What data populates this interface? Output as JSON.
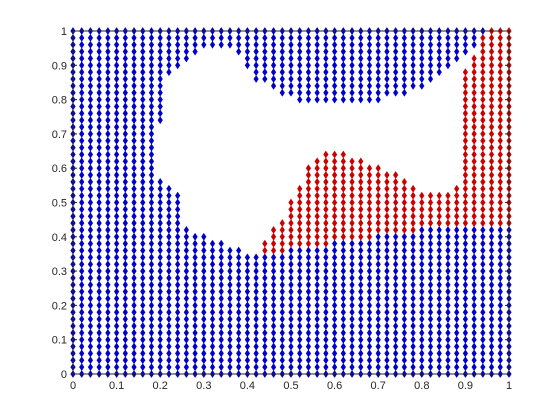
{
  "chart_data": {
    "type": "scatter",
    "title": "",
    "xlabel": "",
    "ylabel": "",
    "xlim": [
      0,
      1
    ],
    "ylim": [
      0,
      1
    ],
    "xticks": [
      0,
      0.1,
      0.2,
      0.3,
      0.4,
      0.5,
      0.6,
      0.7,
      0.8,
      0.9,
      1
    ],
    "yticks": [
      0,
      0.1,
      0.2,
      0.3,
      0.4,
      0.5,
      0.6,
      0.7,
      0.8,
      0.9,
      1
    ],
    "xtick_labels": [
      "0",
      "0.1",
      "0.2",
      "0.3",
      "0.4",
      "0.5",
      "0.6",
      "0.7",
      "0.8",
      "0.9",
      "1"
    ],
    "ytick_labels": [
      "0",
      "0.1",
      "0.2",
      "0.3",
      "0.4",
      "0.5",
      "0.6",
      "0.7",
      "0.8",
      "0.9",
      "1"
    ],
    "grid": false,
    "legend": "none",
    "marker": "diamond",
    "grid_points": {
      "x_start": 0,
      "x_end": 1,
      "x_step": 0.02,
      "y_start": 0,
      "y_end": 1,
      "y_step": 0.02
    },
    "void_region_polygon": [
      [
        0.245,
        0.44
      ],
      [
        0.25,
        0.52
      ],
      [
        0.22,
        0.55
      ],
      [
        0.2,
        0.58
      ],
      [
        0.2,
        0.72
      ],
      [
        0.22,
        0.86
      ],
      [
        0.29,
        0.95
      ],
      [
        0.32,
        0.96
      ],
      [
        0.35,
        0.95
      ],
      [
        0.38,
        0.93
      ],
      [
        0.42,
        0.86
      ],
      [
        0.48,
        0.81
      ],
      [
        0.54,
        0.79
      ],
      [
        0.6,
        0.79
      ],
      [
        0.66,
        0.79
      ],
      [
        0.72,
        0.8
      ],
      [
        0.78,
        0.82
      ],
      [
        0.84,
        0.86
      ],
      [
        0.89,
        0.92
      ],
      [
        0.92,
        0.95
      ],
      [
        0.935,
        0.96
      ],
      [
        0.9,
        0.88
      ],
      [
        0.89,
        0.75
      ],
      [
        0.88,
        0.55
      ],
      [
        0.86,
        0.53
      ],
      [
        0.83,
        0.52
      ],
      [
        0.79,
        0.54
      ],
      [
        0.74,
        0.59
      ],
      [
        0.68,
        0.62
      ],
      [
        0.62,
        0.65
      ],
      [
        0.58,
        0.64
      ],
      [
        0.54,
        0.61
      ],
      [
        0.5,
        0.5
      ],
      [
        0.46,
        0.42
      ],
      [
        0.43,
        0.36
      ],
      [
        0.4,
        0.36
      ],
      [
        0.36,
        0.38
      ],
      [
        0.32,
        0.4
      ],
      [
        0.28,
        0.42
      ]
    ],
    "series": [
      {
        "role": "class-1",
        "color": "#0000cc",
        "rule": "all grid points outside the void region and outside the class-2 region"
      },
      {
        "role": "class-2",
        "color": "#cc0000",
        "region_polygon": [
          [
            0.41,
            0.34
          ],
          [
            0.45,
            0.35
          ],
          [
            0.5,
            0.36
          ],
          [
            0.55,
            0.37
          ],
          [
            0.6,
            0.38
          ],
          [
            0.65,
            0.39
          ],
          [
            0.7,
            0.4
          ],
          [
            0.75,
            0.41
          ],
          [
            0.8,
            0.42
          ],
          [
            0.85,
            0.43
          ],
          [
            0.9,
            0.44
          ],
          [
            0.95,
            0.44
          ],
          [
            1.005,
            0.44
          ],
          [
            1.005,
            1.005
          ],
          [
            0.945,
            1.005
          ],
          [
            0.935,
            0.96
          ],
          [
            0.9,
            0.88
          ],
          [
            0.89,
            0.75
          ],
          [
            0.88,
            0.55
          ],
          [
            0.86,
            0.53
          ],
          [
            0.83,
            0.52
          ],
          [
            0.79,
            0.54
          ],
          [
            0.74,
            0.59
          ],
          [
            0.68,
            0.62
          ],
          [
            0.62,
            0.65
          ],
          [
            0.58,
            0.64
          ],
          [
            0.54,
            0.61
          ],
          [
            0.5,
            0.5
          ],
          [
            0.46,
            0.42
          ],
          [
            0.43,
            0.36
          ]
        ]
      }
    ]
  }
}
